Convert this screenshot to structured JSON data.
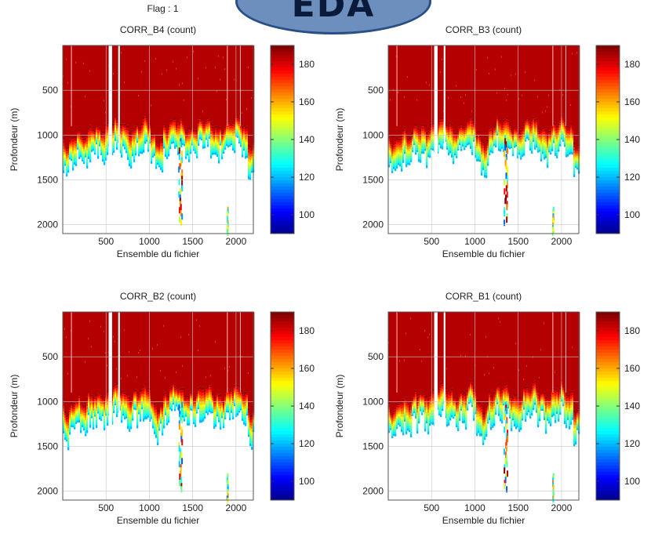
{
  "header": {
    "flag_label": "Flag : 1",
    "badge_text": "EDA"
  },
  "chart_data": [
    {
      "type": "heatmap",
      "title": "CORR_B4 (count)",
      "xlabel": "Ensemble du fichier",
      "ylabel": "Profondeur (m)",
      "xlim": [
        0,
        2200
      ],
      "ylim": [
        2100,
        0
      ],
      "xticks": [
        500,
        1000,
        1500,
        2000
      ],
      "yticks": [
        500,
        1000,
        1500,
        2000
      ],
      "colorbar": {
        "min": 90,
        "max": 190,
        "ticks": [
          100,
          120,
          140,
          160,
          180
        ]
      },
      "grid": true
    },
    {
      "type": "heatmap",
      "title": "CORR_B3 (count)",
      "xlabel": "Ensemble du fichier",
      "ylabel": "Profondeur (m)",
      "xlim": [
        0,
        2200
      ],
      "ylim": [
        2100,
        0
      ],
      "xticks": [
        500,
        1000,
        1500,
        2000
      ],
      "yticks": [
        500,
        1000,
        1500,
        2000
      ],
      "colorbar": {
        "min": 90,
        "max": 190,
        "ticks": [
          100,
          120,
          140,
          160,
          180
        ]
      },
      "grid": true
    },
    {
      "type": "heatmap",
      "title": "CORR_B2 (count)",
      "xlabel": "Ensemble du fichier",
      "ylabel": "Profondeur (m)",
      "xlim": [
        0,
        2200
      ],
      "ylim": [
        2100,
        0
      ],
      "xticks": [
        500,
        1000,
        1500,
        2000
      ],
      "yticks": [
        500,
        1000,
        1500,
        2000
      ],
      "colorbar": {
        "min": 90,
        "max": 190,
        "ticks": [
          100,
          120,
          140,
          160,
          180
        ]
      },
      "grid": true
    },
    {
      "type": "heatmap",
      "title": "CORR_B1 (count)",
      "xlabel": "Ensemble du fichier",
      "ylabel": "Profondeur (m)",
      "xlim": [
        0,
        2200
      ],
      "ylim": [
        2100,
        0
      ],
      "xticks": [
        500,
        1000,
        1500,
        2000
      ],
      "yticks": [
        500,
        1000,
        1500,
        2000
      ],
      "colorbar": {
        "min": 90,
        "max": 190,
        "ticks": [
          100,
          120,
          140,
          160,
          180
        ]
      },
      "grid": true
    }
  ]
}
